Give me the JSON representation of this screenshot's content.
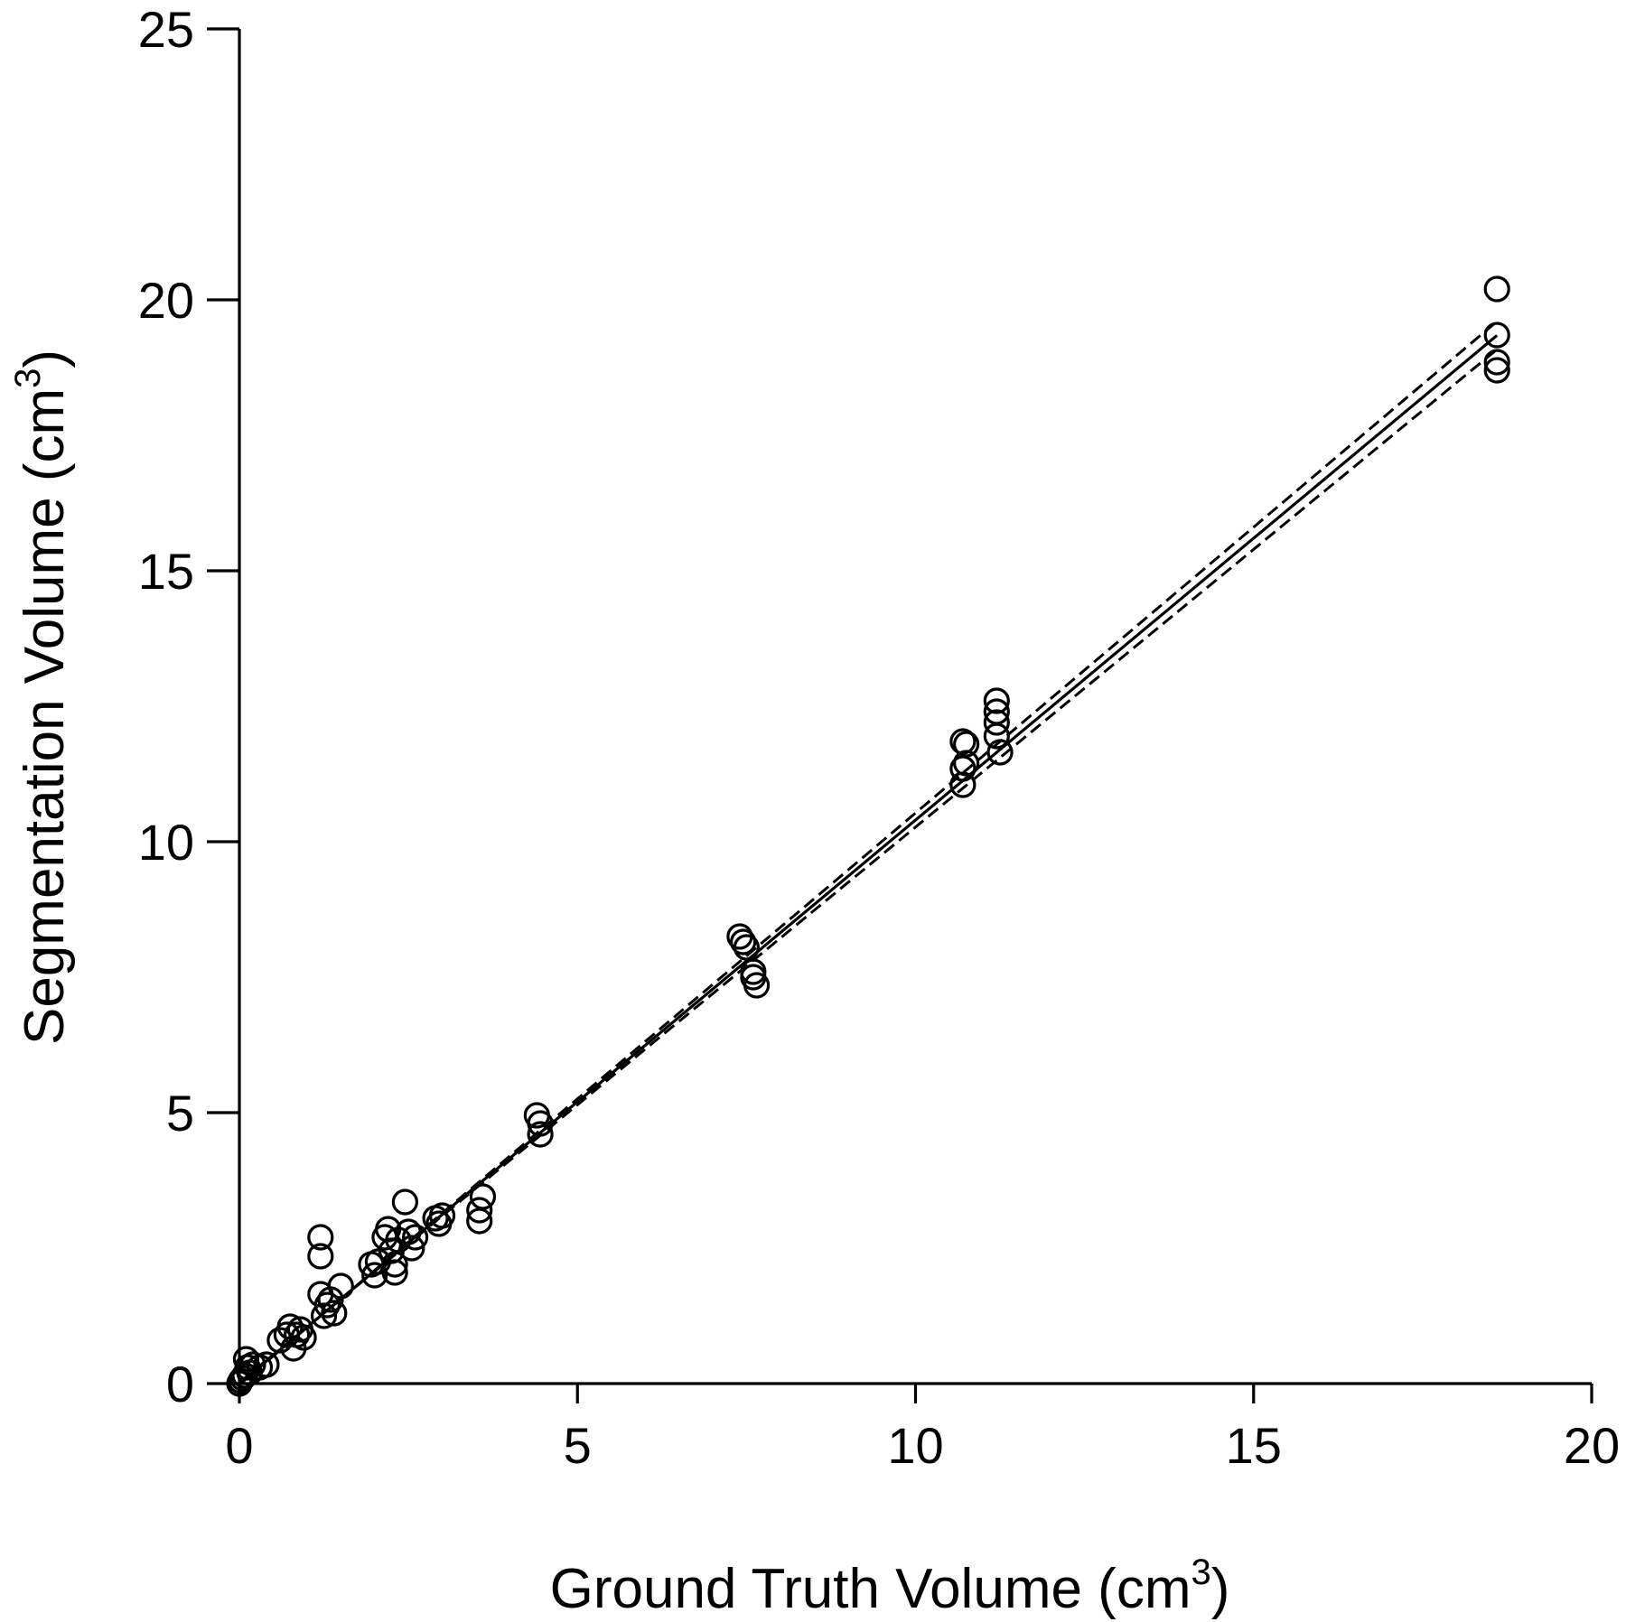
{
  "chart_data": {
    "type": "scatter",
    "title": "",
    "xlabel": "Ground Truth Volume (cm",
    "xlabel_sup": "3",
    "xlabel_close": ")",
    "ylabel": "Segmentation Volume (cm",
    "ylabel_sup": "3",
    "ylabel_close": ")",
    "xlim": [
      0,
      20
    ],
    "ylim": [
      0,
      25
    ],
    "x_ticks": [
      0,
      5,
      10,
      15,
      20
    ],
    "y_ticks": [
      0,
      5,
      10,
      15,
      20,
      25
    ],
    "x_tick_labels": [
      "0",
      "5",
      "10",
      "15",
      "20"
    ],
    "y_tick_labels": [
      "0",
      "5",
      "10",
      "15",
      "20",
      "25"
    ],
    "grid": false,
    "legend": "none",
    "marker": "open-circle",
    "series": [
      {
        "points": [
          [
            0.0,
            0.0
          ],
          [
            0.02,
            0.05
          ],
          [
            0.05,
            0.1
          ],
          [
            0.08,
            0.15
          ],
          [
            0.1,
            0.45
          ],
          [
            0.12,
            0.3
          ],
          [
            0.15,
            0.2
          ],
          [
            0.2,
            0.35
          ],
          [
            0.3,
            0.3
          ],
          [
            0.4,
            0.35
          ],
          [
            0.6,
            0.8
          ],
          [
            0.7,
            0.9
          ],
          [
            0.75,
            1.05
          ],
          [
            0.8,
            0.65
          ],
          [
            0.85,
            0.9
          ],
          [
            0.9,
            1.0
          ],
          [
            0.95,
            0.85
          ],
          [
            1.2,
            2.7
          ],
          [
            1.2,
            2.35
          ],
          [
            1.2,
            1.65
          ],
          [
            1.25,
            1.25
          ],
          [
            1.3,
            1.45
          ],
          [
            1.35,
            1.55
          ],
          [
            1.4,
            1.3
          ],
          [
            1.5,
            1.8
          ],
          [
            1.95,
            2.2
          ],
          [
            2.0,
            2.0
          ],
          [
            2.05,
            2.25
          ],
          [
            2.15,
            2.7
          ],
          [
            2.2,
            2.85
          ],
          [
            2.25,
            2.45
          ],
          [
            2.3,
            2.2
          ],
          [
            2.3,
            2.05
          ],
          [
            2.35,
            2.65
          ],
          [
            2.45,
            3.35
          ],
          [
            2.5,
            2.8
          ],
          [
            2.55,
            2.5
          ],
          [
            2.6,
            2.7
          ],
          [
            2.9,
            3.05
          ],
          [
            2.95,
            2.95
          ],
          [
            3.0,
            3.1
          ],
          [
            3.55,
            3.0
          ],
          [
            3.55,
            3.2
          ],
          [
            3.6,
            3.45
          ],
          [
            4.4,
            4.95
          ],
          [
            4.45,
            4.8
          ],
          [
            4.45,
            4.6
          ],
          [
            7.4,
            8.25
          ],
          [
            7.45,
            8.15
          ],
          [
            7.5,
            8.05
          ],
          [
            7.6,
            7.6
          ],
          [
            7.6,
            7.5
          ],
          [
            7.65,
            7.35
          ],
          [
            10.7,
            11.85
          ],
          [
            10.75,
            11.8
          ],
          [
            10.7,
            11.35
          ],
          [
            10.7,
            11.05
          ],
          [
            10.75,
            11.45
          ],
          [
            11.2,
            12.6
          ],
          [
            11.2,
            12.4
          ],
          [
            11.2,
            12.2
          ],
          [
            11.2,
            11.95
          ],
          [
            11.25,
            11.65
          ],
          [
            18.6,
            20.2
          ],
          [
            18.6,
            19.35
          ],
          [
            18.6,
            18.85
          ],
          [
            18.6,
            18.7
          ]
        ]
      }
    ],
    "fit_line": {
      "slope": 1.04,
      "intercept": 0.0,
      "x_range": [
        0,
        18.6
      ]
    },
    "ci_lines": [
      {
        "slope": 1.055,
        "intercept": -0.02,
        "x_range": [
          0,
          18.6
        ]
      },
      {
        "slope": 1.025,
        "intercept": 0.02,
        "x_range": [
          0,
          18.6
        ]
      }
    ]
  }
}
